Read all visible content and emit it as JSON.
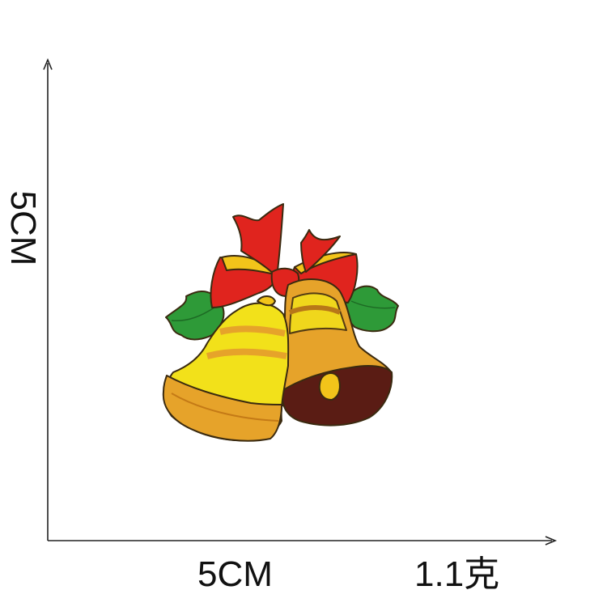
{
  "dimensions": {
    "height_label": "5CM",
    "width_label": "5CM",
    "weight_label": "1.1克"
  },
  "colors": {
    "axis": "#222222",
    "bell_yellow": "#f2e11a",
    "bell_orange": "#e6a32a",
    "bell_brown": "#5a1c14",
    "ribbon_red": "#e0241e",
    "leaf_green": "#2e9a38",
    "outline": "#3a2a10"
  },
  "product": {
    "subject": "embroidered-christmas-bells-patch-icon"
  }
}
